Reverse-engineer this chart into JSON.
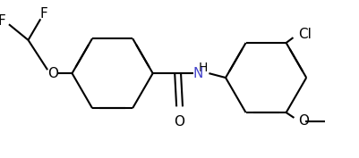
{
  "bg": "#ffffff",
  "lc": "#000000",
  "nh_color": "#4444cc",
  "lw": 1.5,
  "dbo": 0.013,
  "fig_w": 4.01,
  "fig_h": 1.77,
  "dpi": 100,
  "xlim": [
    0,
    401
  ],
  "ylim": [
    0,
    177
  ],
  "r1cx": 120,
  "r1cy": 95,
  "r2cx": 295,
  "r2cy": 90,
  "ring_r": 46,
  "label_fs": 11
}
